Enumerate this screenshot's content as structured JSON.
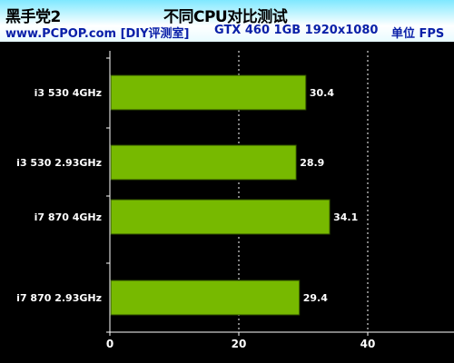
{
  "header": {
    "brand": "黑手党2",
    "title": "不同CPU对比测试",
    "site": "www.PCPOP.com [DIY评测室]",
    "config": "GTX 460 1GB  1920x1080",
    "unit": "单位 FPS"
  },
  "chart_data": {
    "type": "bar",
    "orientation": "horizontal",
    "categories": [
      "i3 530 4GHz",
      "i3 530 2.93GHz",
      "i7 870 4GHz",
      "i7 870 2.93GHz"
    ],
    "values": [
      30.4,
      28.9,
      34.1,
      29.4
    ],
    "xlim": [
      0,
      50
    ],
    "xticks": [
      0,
      20,
      40
    ],
    "grid": "vertical dotted",
    "bar_color": "#77b900",
    "background": "#000000"
  }
}
